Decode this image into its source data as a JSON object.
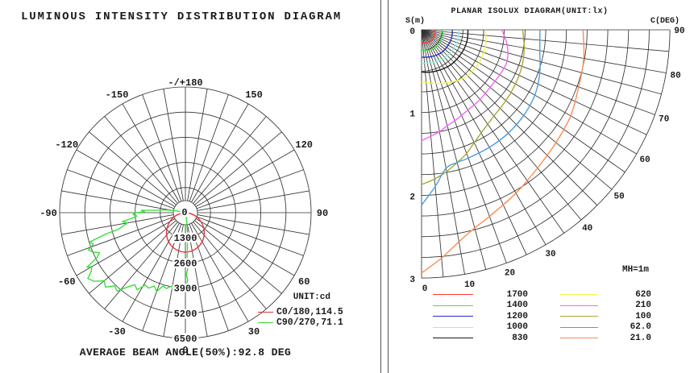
{
  "left_panel": {
    "title": "LUMINOUS INTENSITY DISTRIBUTION DIAGRAM",
    "footer": "AVERAGE BEAM ANGLE(50%):92.8 DEG",
    "legend": {
      "unit_label": "UNIT:cd",
      "entries": [
        {
          "label": "C0/180,114.5",
          "color": "#e83030"
        },
        {
          "label": "C90/270,71.1",
          "color": "#35e035"
        }
      ]
    }
  },
  "right_panel": {
    "title": "PLANAR ISOLUX DIAGRAM(UNIT:lx)",
    "s_axis_label": "S(m)",
    "c_axis_label": "C(DEG)",
    "mounting_height_label": "MH=1m",
    "legend": {
      "col1": [
        {
          "value": "1700",
          "color": "#ff3b30"
        },
        {
          "value": "1400",
          "color": "#45e045"
        },
        {
          "value": "1200",
          "color": "#2a2ac8"
        },
        {
          "value": "1000",
          "color": "#8cf5e6"
        },
        {
          "value": "830",
          "color": "#1a1a1a"
        }
      ],
      "col2": [
        {
          "value": "620",
          "color": "#f5f54a"
        },
        {
          "value": "210",
          "color": "#f566f5"
        },
        {
          "value": "100",
          "color": "#a8a832"
        },
        {
          "value": "62.0",
          "color": "#4f9ddf"
        },
        {
          "value": "21.0",
          "color": "#ff8a50"
        }
      ]
    }
  },
  "chart_data": [
    {
      "type": "line",
      "subtype": "polar-luminous-intensity",
      "title": "LUMINOUS INTENSITY DISTRIBUTION DIAGRAM",
      "unit": "cd",
      "ring_values": [
        "1300",
        "2600",
        "3900",
        "5200",
        "6500"
      ],
      "ring_step_cd": 1300,
      "center_label": "0",
      "angle_step_deg": 10,
      "angle_labels": [
        {
          "angle": 180,
          "label": "-/+180"
        },
        {
          "angle": -150,
          "label": "-150"
        },
        {
          "angle": 150,
          "label": "150"
        },
        {
          "angle": -120,
          "label": "-120"
        },
        {
          "angle": 120,
          "label": "120"
        },
        {
          "angle": -90,
          "label": "-90"
        },
        {
          "angle": 90,
          "label": "90"
        },
        {
          "angle": -60,
          "label": "-60"
        },
        {
          "angle": 60,
          "label": "60"
        },
        {
          "angle": -30,
          "label": "-30"
        },
        {
          "angle": 30,
          "label": "30"
        },
        {
          "angle": 0,
          "label": "0"
        }
      ],
      "series": [
        {
          "name": "C0/180,114.5",
          "color": "#e83030",
          "smooth": true,
          "points_theta_cd": [
            [
              -90,
              0
            ],
            [
              -80,
              282
            ],
            [
              -70,
              607
            ],
            [
              -60,
              932
            ],
            [
              -50,
              1238
            ],
            [
              -40,
              1509
            ],
            [
              -30,
              1734
            ],
            [
              -20,
              1901
            ],
            [
              -10,
              2005
            ],
            [
              0,
              2040
            ],
            [
              10,
              2005
            ],
            [
              20,
              1901
            ],
            [
              30,
              1734
            ],
            [
              40,
              1509
            ],
            [
              50,
              1238
            ],
            [
              60,
              932
            ],
            [
              70,
              607
            ],
            [
              80,
              282
            ],
            [
              90,
              0
            ]
          ]
        },
        {
          "name": "C90/270,71.1",
          "color": "#35e035",
          "smooth": false,
          "points_theta_cd": [
            [
              12,
              150
            ],
            [
              8,
              600
            ],
            [
              6,
              1000
            ],
            [
              4,
              1500
            ],
            [
              3,
              2000
            ],
            [
              2,
              2400
            ],
            [
              3,
              2800
            ],
            [
              1,
              3200
            ],
            [
              2,
              3500
            ],
            [
              0,
              3800
            ],
            [
              -3,
              3700
            ],
            [
              -5,
              3810
            ],
            [
              -8,
              3950
            ],
            [
              -11,
              3880
            ],
            [
              -14,
              4040
            ],
            [
              -17,
              3960
            ],
            [
              -20,
              4340
            ],
            [
              -23,
              4120
            ],
            [
              -26,
              4340
            ],
            [
              -29,
              4280
            ],
            [
              -32,
              4700
            ],
            [
              -35,
              4560
            ],
            [
              -38,
              4880
            ],
            [
              -41,
              5380
            ],
            [
              -44,
              5260
            ],
            [
              -47,
              5640
            ],
            [
              -50,
              5480
            ],
            [
              -53,
              5900
            ],
            [
              -56,
              6080
            ],
            [
              -58,
              5750
            ],
            [
              -60,
              5580
            ],
            [
              -61,
              5820
            ],
            [
              -63,
              5120
            ],
            [
              -65,
              4900
            ],
            [
              -67,
              5200
            ],
            [
              -69,
              5370
            ],
            [
              -71,
              5030
            ],
            [
              -73,
              5150
            ],
            [
              -74,
              4670
            ],
            [
              -75,
              4250
            ],
            [
              -76,
              3580
            ],
            [
              -78,
              3290
            ],
            [
              -80,
              3060
            ],
            [
              -82,
              3290
            ],
            [
              -84,
              2780
            ],
            [
              -86,
              2520
            ],
            [
              -88,
              2700
            ],
            [
              -90,
              2600
            ],
            [
              -91,
              2100
            ],
            [
              -93,
              2280
            ],
            [
              -95,
              1480
            ],
            [
              -97,
              1150
            ],
            [
              -99,
              860
            ],
            [
              -101,
              560
            ],
            [
              -103,
              300
            ],
            [
              -105,
              80
            ]
          ]
        }
      ]
    },
    {
      "type": "line",
      "subtype": "isolux-fan",
      "title": "PLANAR ISOLUX DIAGRAM(UNIT:lx)",
      "unit": "lx",
      "mounting_height": "MH=1m",
      "s_ticks": [
        "0",
        "1",
        "2",
        "3"
      ],
      "s_max_m": 3.0,
      "arc_step_m": 0.25,
      "ray_step_deg": 5,
      "c_tick_labels": [
        "0",
        "10",
        "20",
        "30",
        "40",
        "50",
        "60",
        "70",
        "80",
        "90"
      ],
      "c_angles_deg": [
        90,
        80,
        70,
        60,
        50,
        40,
        30,
        20,
        15,
        10,
        5,
        0
      ],
      "curves": [
        {
          "lux": "1700",
          "color": "#ff3b30",
          "r_m": [
            0.16,
            0.165,
            0.17,
            0.175,
            0.175,
            0.175,
            0.17,
            0.165,
            0.163,
            0.162,
            0.161,
            0.16
          ]
        },
        {
          "lux": "1400",
          "color": "#45e045",
          "r_m": [
            0.25,
            0.26,
            0.265,
            0.27,
            0.27,
            0.27,
            0.265,
            0.26,
            0.257,
            0.254,
            0.252,
            0.25
          ]
        },
        {
          "lux": "1200",
          "color": "#2a2ac8",
          "r_m": [
            0.37,
            0.375,
            0.375,
            0.37,
            0.37,
            0.365,
            0.355,
            0.345,
            0.34,
            0.337,
            0.333,
            0.33
          ]
        },
        {
          "lux": "1000",
          "color": "#8cf5e6",
          "r_m": [
            0.45,
            0.455,
            0.455,
            0.45,
            0.445,
            0.44,
            0.43,
            0.42,
            0.415,
            0.41,
            0.405,
            0.4
          ]
        },
        {
          "lux": "830",
          "color": "#1a1a1a",
          "r_m": [
            0.56,
            0.565,
            0.565,
            0.56,
            0.555,
            0.55,
            0.54,
            0.53,
            0.525,
            0.52,
            0.515,
            0.51
          ]
        },
        {
          "lux": "620",
          "color": "#f5f54a",
          "r_m": [
            0.77,
            0.79,
            0.8,
            0.8,
            0.79,
            0.77,
            0.73,
            0.69,
            0.67,
            0.655,
            0.64,
            0.63
          ]
        },
        {
          "lux": "210",
          "color": "#f566f5",
          "r_m": [
            0.97,
            1.05,
            1.1,
            1.09,
            1.08,
            1.1,
            1.12,
            1.17,
            1.2,
            1.25,
            1.29,
            1.34
          ]
        },
        {
          "lux": "100",
          "color": "#a8a832",
          "r_m": [
            1.22,
            1.26,
            1.29,
            1.31,
            1.33,
            1.36,
            1.44,
            1.59,
            1.66,
            1.74,
            1.81,
            1.87
          ]
        },
        {
          "lux": "62.0",
          "color": "#4f9ddf",
          "r_m": [
            1.43,
            1.45,
            1.52,
            1.58,
            1.61,
            1.63,
            1.64,
            1.65,
            1.66,
            1.7,
            1.9,
            2.12
          ]
        },
        {
          "lux": "21.0",
          "color": "#ff8a50",
          "r_m": [
            1.95,
            1.99,
            2.02,
            2.08,
            2.12,
            2.18,
            2.28,
            2.4,
            2.48,
            2.6,
            2.77,
            2.94
          ]
        }
      ]
    }
  ]
}
